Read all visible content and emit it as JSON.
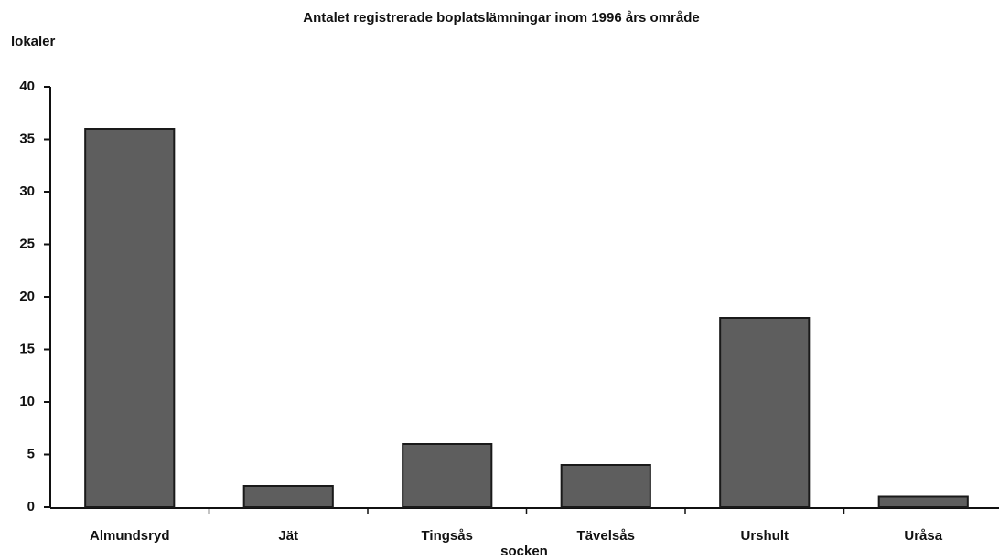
{
  "chart_data": {
    "type": "bar",
    "title": "Antalet registrerade boplatslämningar inom 1996 års område",
    "y_label": "lokaler",
    "x_label": "socken",
    "categories": [
      "Almundsryd",
      "Jät",
      "Tingsås",
      "Tävelsås",
      "Urshult",
      "Uråsa"
    ],
    "values": [
      36,
      2,
      6,
      4,
      18,
      1
    ],
    "color": "#5e5e5e",
    "ylim": [
      0,
      40
    ],
    "yticks": [
      0,
      5,
      10,
      15,
      20,
      25,
      30,
      35,
      40
    ],
    "grid": false
  }
}
